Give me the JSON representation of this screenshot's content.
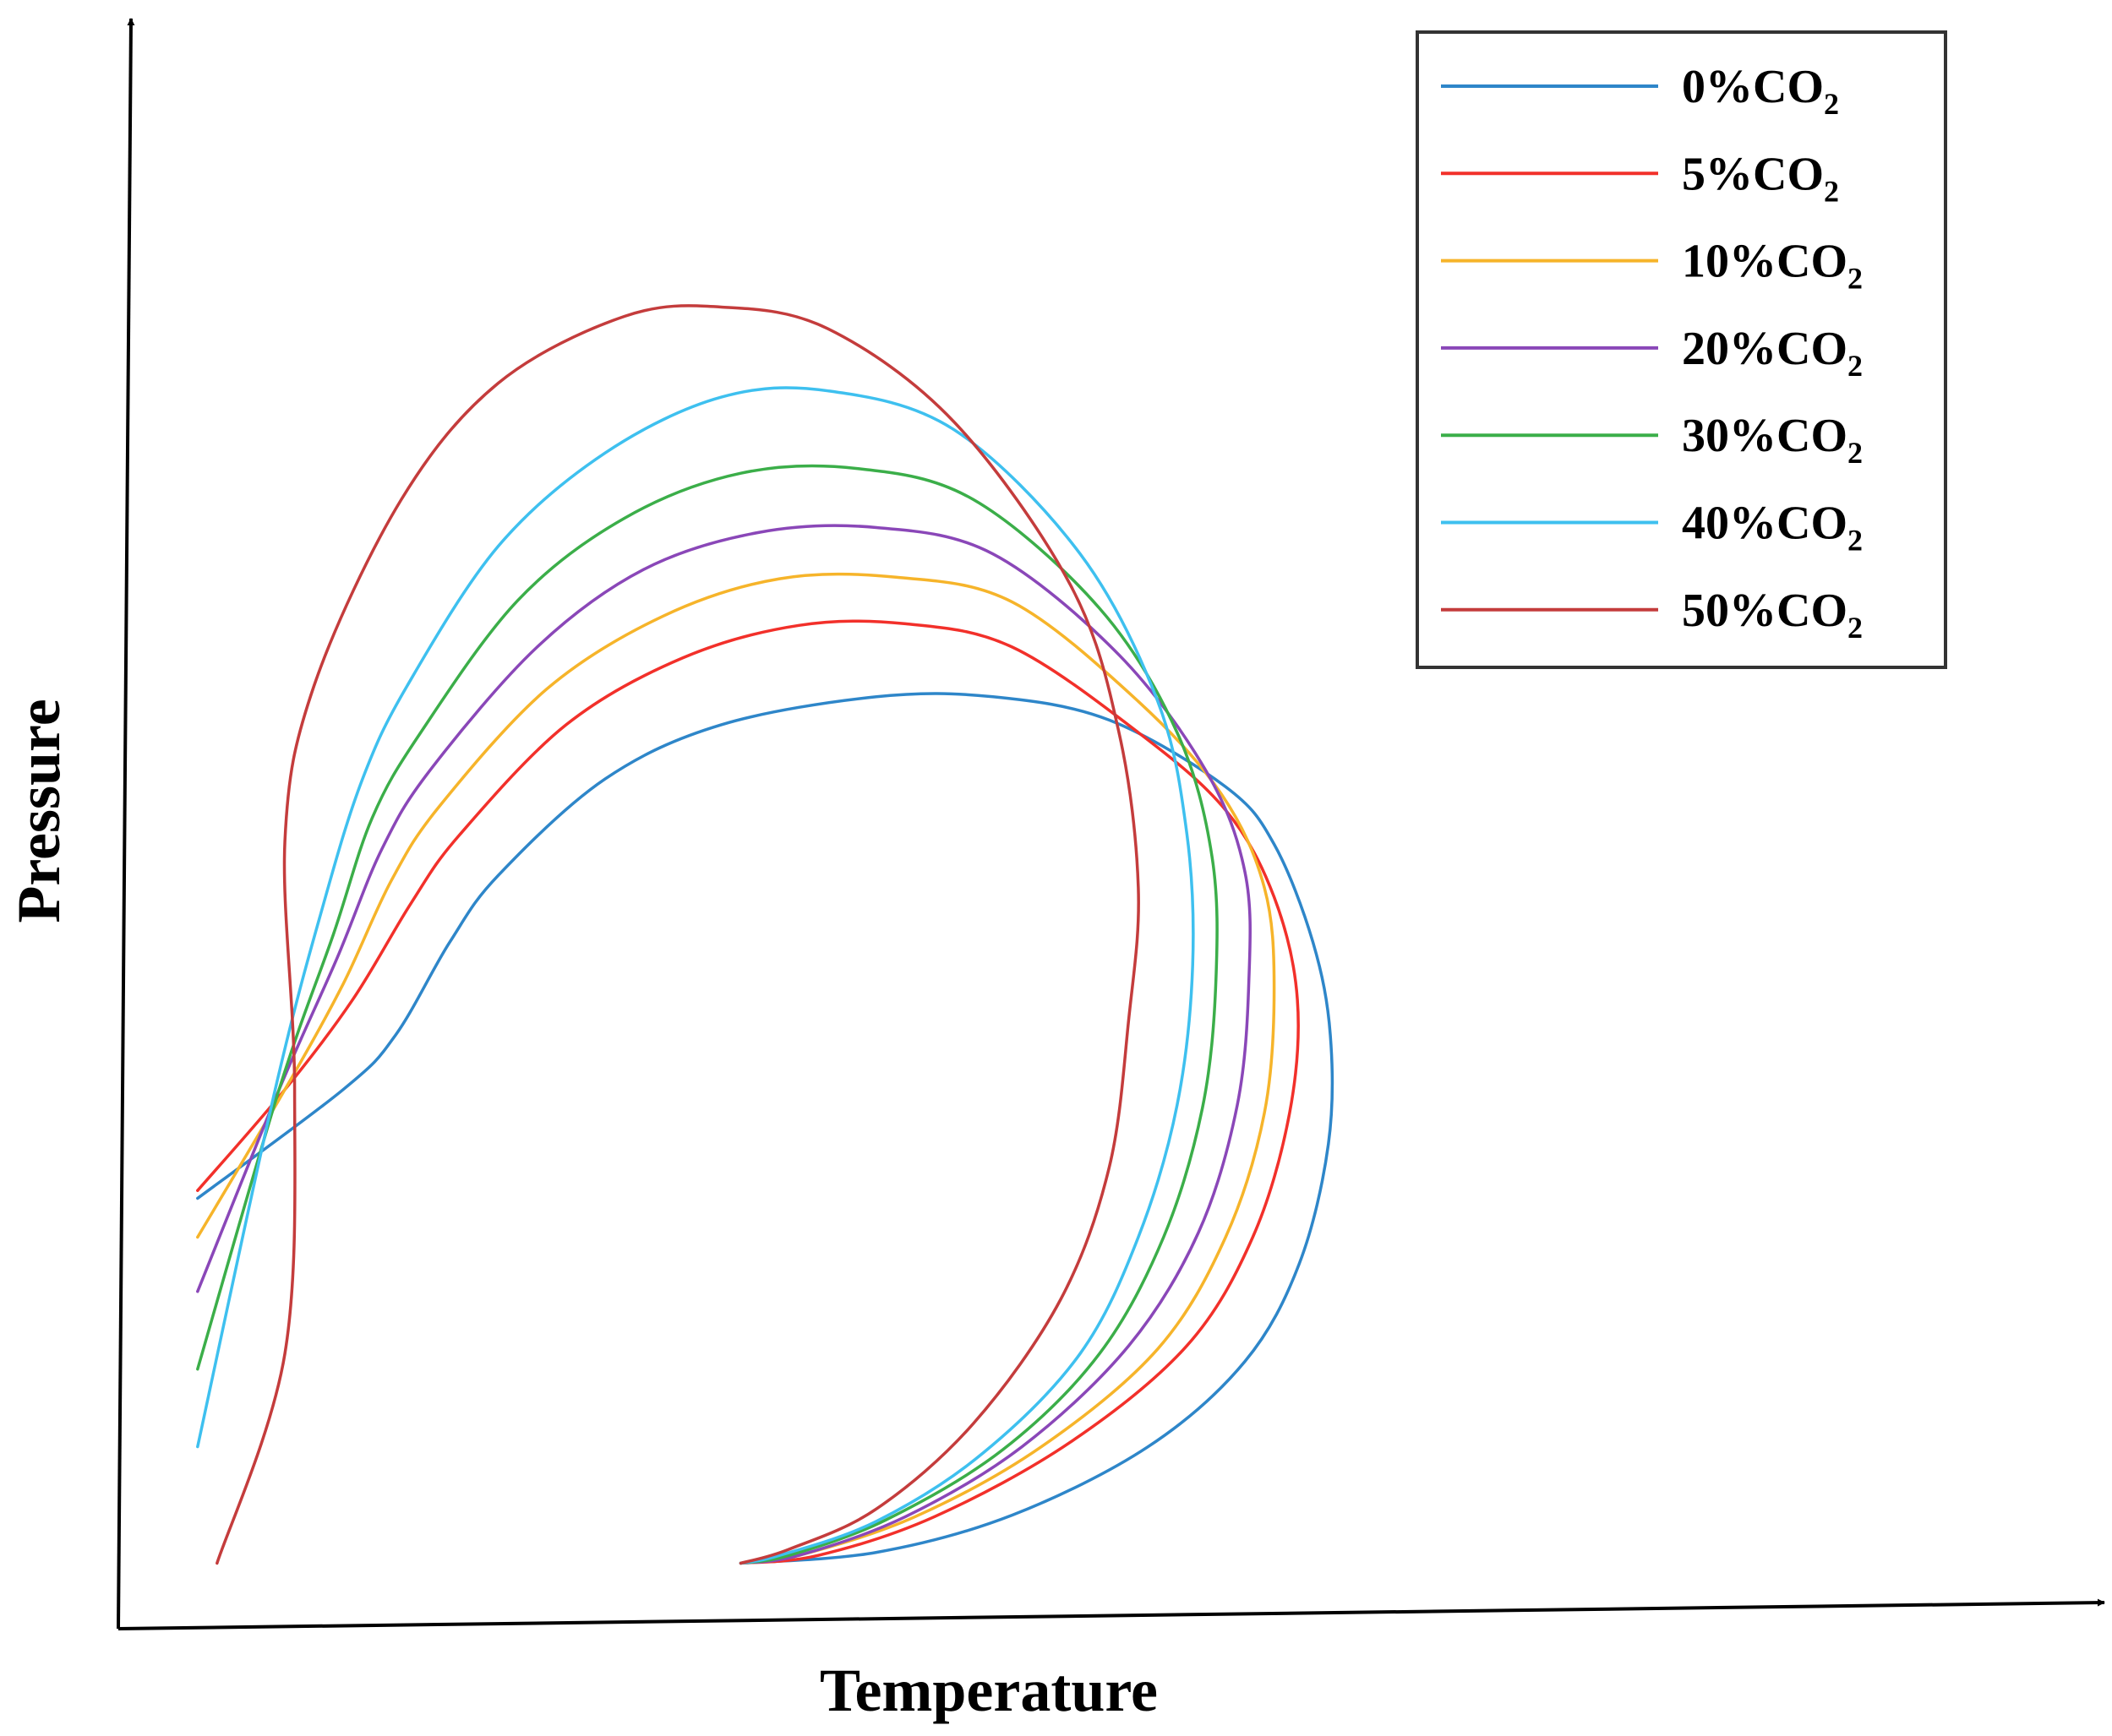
{
  "chart_data": {
    "type": "line",
    "title": "",
    "xlabel": "Temperature",
    "ylabel": "Pressure",
    "x_ticks": [],
    "y_ticks": [],
    "grid": false,
    "legend_position": "top-right",
    "xlim": [
      0,
      100
    ],
    "ylim": [
      0,
      100
    ],
    "series": [
      {
        "name": "0%CO2",
        "label_main": "0%CO",
        "label_sub": "2",
        "color": "#2e86c9",
        "x": [
          3.0,
          10.5,
          13.2,
          16.0,
          18.5,
          24.0,
          30.0,
          38.0,
          44.0,
          50.0,
          56.0,
          58.5,
          60.5,
          61.4,
          61.3,
          59.8,
          57.0,
          52.0,
          45.0,
          38.0,
          31.0
        ],
        "y": [
          25.0,
          32.0,
          35.5,
          41.5,
          45.8,
          52.0,
          55.5,
          57.3,
          57.3,
          55.8,
          51.5,
          47.8,
          41.5,
          35.5,
          28.5,
          20.8,
          14.5,
          9.0,
          4.6,
          2.2,
          1.5
        ]
      },
      {
        "name": "5%CO2",
        "label_main": "5%CO",
        "label_sub": "2",
        "color": "#f2302a",
        "x": [
          3.0,
          7.5,
          11.0,
          14.0,
          16.5,
          22.0,
          28.0,
          34.0,
          39.5,
          45.0,
          51.5,
          56.0,
          58.5,
          59.7,
          59.3,
          57.4,
          54.0,
          48.0,
          41.0,
          35.0,
          31.0
        ],
        "y": [
          25.5,
          32.0,
          37.8,
          44.0,
          48.4,
          55.5,
          59.8,
          61.9,
          62.0,
          60.5,
          55.0,
          50.0,
          44.4,
          37.8,
          30.5,
          22.5,
          15.5,
          9.3,
          4.5,
          2.0,
          1.5
        ]
      },
      {
        "name": "10%CO2",
        "label_main": "10%CO",
        "label_sub": "2",
        "color": "#f6b42a",
        "x": [
          3.0,
          7.5,
          10.5,
          13.0,
          15.5,
          21.0,
          27.0,
          33.0,
          39.0,
          45.0,
          51.5,
          55.8,
          58.0,
          58.5,
          58.0,
          56.0,
          52.5,
          46.5,
          40.0,
          34.0,
          31.0
        ],
        "y": [
          22.5,
          32.0,
          38.8,
          45.5,
          50.3,
          57.8,
          62.5,
          64.9,
          65.0,
          63.4,
          57.0,
          51.0,
          45.0,
          38.5,
          30.5,
          22.5,
          15.3,
          9.0,
          4.5,
          2.0,
          1.5
        ]
      },
      {
        "name": "20%CO2",
        "label_main": "20%CO",
        "label_sub": "2",
        "color": "#8a47b8",
        "x": [
          3.0,
          7.2,
          10.2,
          12.5,
          15.0,
          20.5,
          26.0,
          32.0,
          38.0,
          44.0,
          50.5,
          55.0,
          57.0,
          57.2,
          56.6,
          54.6,
          51.0,
          45.5,
          39.5,
          34.0,
          31.0
        ],
        "y": [
          19.0,
          32.0,
          40.5,
          47.5,
          52.6,
          60.5,
          65.5,
          67.9,
          68.2,
          66.5,
          60.0,
          52.5,
          46.0,
          39.0,
          31.0,
          22.8,
          15.5,
          9.0,
          4.5,
          2.0,
          1.5
        ]
      },
      {
        "name": "30%CO2",
        "label_main": "30%CO",
        "label_sub": "2",
        "color": "#3bae49",
        "x": [
          3.0,
          7.2,
          10.0,
          12.0,
          14.5,
          19.5,
          25.0,
          31.0,
          37.0,
          43.0,
          49.5,
          53.5,
          55.3,
          55.5,
          54.8,
          52.8,
          49.5,
          44.5,
          38.5,
          33.5,
          31.0
        ],
        "y": [
          14.0,
          32.0,
          42.0,
          49.5,
          55.0,
          63.5,
          68.8,
          71.7,
          72.0,
          70.0,
          63.0,
          55.0,
          47.0,
          39.0,
          30.8,
          22.5,
          15.0,
          8.8,
          4.3,
          2.0,
          1.5
        ]
      },
      {
        "name": "40%CO2",
        "label_main": "40%CO",
        "label_sub": "2",
        "color": "#3ec0ef",
        "x": [
          3.0,
          7.0,
          9.5,
          11.5,
          13.8,
          18.5,
          24.0,
          30.0,
          35.5,
          42.0,
          48.5,
          52.5,
          54.0,
          54.3,
          53.5,
          51.5,
          48.5,
          43.5,
          38.0,
          33.0,
          31.0
        ],
        "y": [
          9.0,
          32.0,
          44.0,
          52.0,
          58.0,
          67.0,
          73.0,
          76.6,
          77.0,
          74.5,
          66.5,
          57.0,
          48.5,
          40.0,
          31.0,
          22.5,
          15.0,
          8.6,
          4.2,
          2.0,
          1.5
        ]
      },
      {
        "name": "50%CO2",
        "label_main": "50%CO",
        "label_sub": "2",
        "color": "#c43c3c",
        "x": [
          4.0,
          7.5,
          8.0,
          7.5,
          9.0,
          13.5,
          18.5,
          25.0,
          30.0,
          35.5,
          42.0,
          48.0,
          50.5,
          51.5,
          51.0,
          50.0,
          47.5,
          43.0,
          38.0,
          33.5,
          31.0
        ],
        "y": [
          1.5,
          15.0,
          32.0,
          48.0,
          58.0,
          70.0,
          77.5,
          81.8,
          82.4,
          81.0,
          75.0,
          64.5,
          55.0,
          45.0,
          36.5,
          27.0,
          18.5,
          10.5,
          5.0,
          2.4,
          1.5
        ]
      }
    ]
  }
}
